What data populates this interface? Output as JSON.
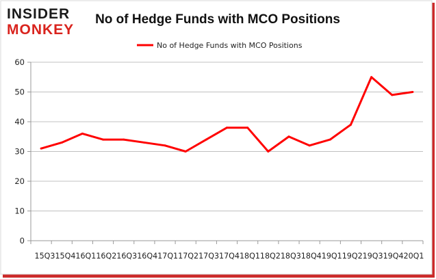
{
  "logo": {
    "line1": "INSIDER",
    "line2": "MONKEY"
  },
  "colors": {
    "series": "#ff0000",
    "logo_dark": "#1a1a1a",
    "logo_red": "#d9231d",
    "grid": "#c0c0c0",
    "frame_shadow": "#cc2a2a",
    "text": "#222222"
  },
  "chart_data": {
    "type": "line",
    "title": "No of Hedge Funds with MCO Positions",
    "xlabel": "",
    "ylabel": "",
    "legend": "top-center",
    "grid": true,
    "ylim": [
      0,
      60
    ],
    "yticks": [
      0,
      10,
      20,
      30,
      40,
      50,
      60
    ],
    "x_tick_text": "15Q315Q416Q116Q216Q316Q417Q117Q217Q317Q418Q118Q218Q318Q419Q119Q219Q319Q420Q1",
    "categories": [
      "15Q3",
      "15Q4",
      "16Q1",
      "16Q2",
      "16Q3",
      "16Q4",
      "17Q1",
      "17Q2",
      "17Q3",
      "17Q4",
      "18Q1",
      "18Q2",
      "18Q3",
      "18Q4",
      "19Q1",
      "19Q2",
      "19Q3",
      "19Q4",
      "20Q1"
    ],
    "series": [
      {
        "name": "No of Hedge Funds with MCO Positions",
        "values": [
          31,
          33,
          36,
          34,
          34,
          33,
          32,
          30,
          34,
          38,
          38,
          30,
          35,
          32,
          34,
          39,
          55,
          49,
          50
        ]
      }
    ]
  }
}
